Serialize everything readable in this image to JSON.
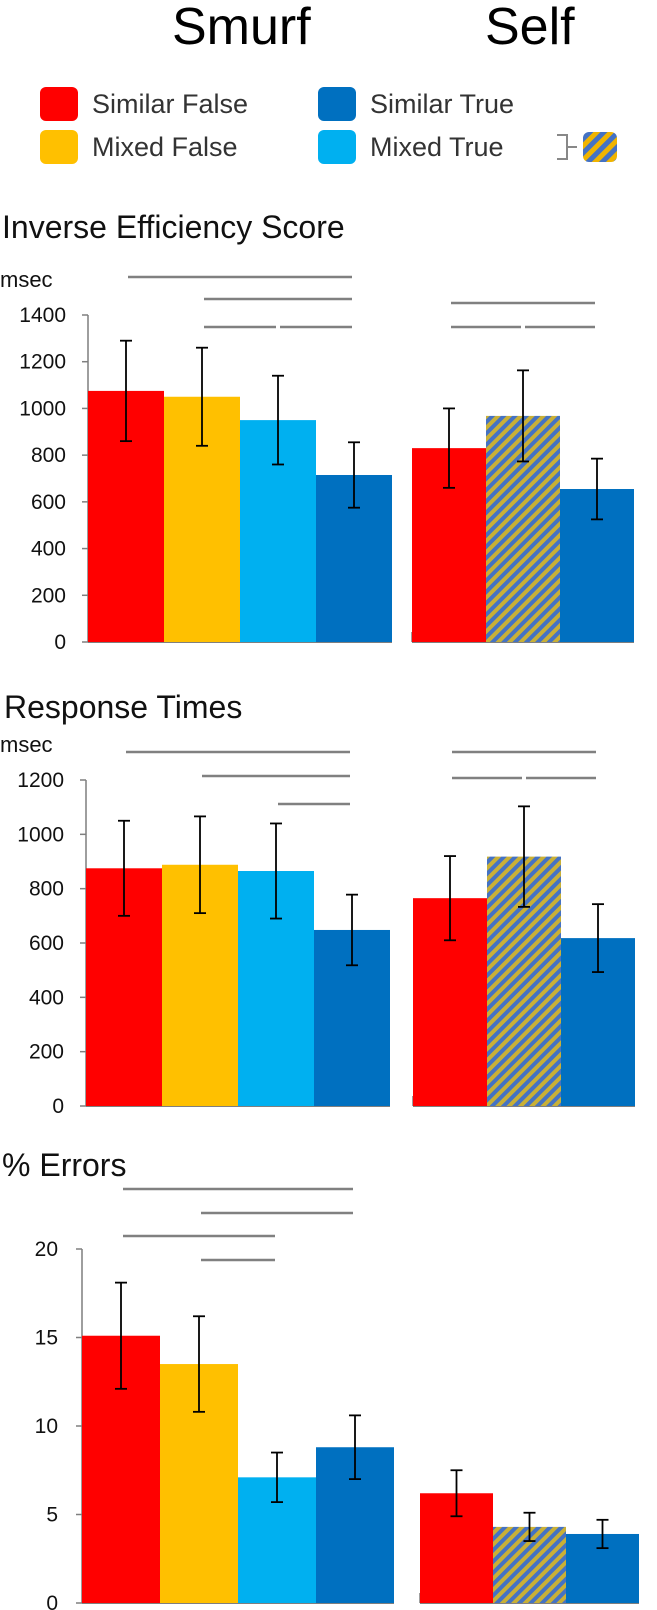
{
  "header": {
    "left_title": "Smurf",
    "right_title": "Self"
  },
  "legend": {
    "items": [
      {
        "label": "Similar False",
        "color": "#ff0000"
      },
      {
        "label": "Similar True",
        "color": "#0070c0"
      },
      {
        "label": "Mixed False",
        "color": "#ffc000"
      },
      {
        "label": "Mixed True",
        "color": "#00b0f0"
      }
    ],
    "combined_note_icon": "hatched-blue-yellow-swatch"
  },
  "colors": {
    "similar_false": "#ff0000",
    "mixed_false": "#ffc000",
    "mixed_true": "#00b0f0",
    "similar_true": "#0070c0",
    "hatch_a": "#4472c4",
    "hatch_b": "#c9b036",
    "sig_line": "#808080",
    "axis": "#7f7f7f"
  },
  "chart_data": [
    {
      "type": "bar",
      "title": "Inverse Efficiency Score",
      "ylabel": "msec",
      "ylim": [
        0,
        1400
      ],
      "yticks": [
        "0",
        "200",
        "400",
        "600",
        "800",
        "1000",
        "1200",
        "1400"
      ],
      "groups": [
        {
          "name": "Smurf",
          "categories": [
            "Similar False",
            "Mixed False",
            "Mixed True",
            "Similar True"
          ],
          "values": [
            1075,
            1050,
            950,
            715
          ],
          "errors": [
            215,
            210,
            190,
            140
          ]
        },
        {
          "name": "Self",
          "categories": [
            "Similar False",
            "Mixed True (combined)",
            "Similar True"
          ],
          "values": [
            830,
            968,
            655
          ],
          "errors": [
            170,
            195,
            130
          ]
        }
      ],
      "significance": [
        {
          "group": "Smurf",
          "from": 0,
          "to": 3
        },
        {
          "group": "Smurf",
          "from": 1,
          "to": 3
        },
        {
          "group": "Smurf",
          "from": 1,
          "to": 2
        },
        {
          "group": "Smurf",
          "from": 2,
          "to": 3
        },
        {
          "group": "Self",
          "from": 0,
          "to": 2
        },
        {
          "group": "Self",
          "from": 0,
          "to": 1
        },
        {
          "group": "Self",
          "from": 1,
          "to": 2
        }
      ]
    },
    {
      "type": "bar",
      "title": "Response Times",
      "ylabel": "msec",
      "ylim": [
        0,
        1200
      ],
      "yticks": [
        "0",
        "200",
        "400",
        "600",
        "800",
        "1000",
        "1200"
      ],
      "groups": [
        {
          "name": "Smurf",
          "categories": [
            "Similar False",
            "Mixed False",
            "Mixed True",
            "Similar True"
          ],
          "values": [
            875,
            888,
            865,
            648
          ],
          "errors": [
            175,
            178,
            175,
            130
          ]
        },
        {
          "name": "Self",
          "categories": [
            "Similar False",
            "Mixed True (combined)",
            "Similar True"
          ],
          "values": [
            765,
            918,
            618
          ],
          "errors": [
            155,
            185,
            125
          ]
        }
      ],
      "significance": [
        {
          "group": "Smurf",
          "from": 0,
          "to": 3
        },
        {
          "group": "Smurf",
          "from": 1,
          "to": 3
        },
        {
          "group": "Smurf",
          "from": 2,
          "to": 3
        },
        {
          "group": "Self",
          "from": 0,
          "to": 2
        },
        {
          "group": "Self",
          "from": 0,
          "to": 1
        },
        {
          "group": "Self",
          "from": 1,
          "to": 2
        }
      ]
    },
    {
      "type": "bar",
      "title": "% Errors",
      "ylabel": "",
      "ylim": [
        0,
        20
      ],
      "yticks": [
        "0",
        "5",
        "10",
        "15",
        "20"
      ],
      "groups": [
        {
          "name": "Smurf",
          "categories": [
            "Similar False",
            "Mixed False",
            "Mixed True",
            "Similar True"
          ],
          "values": [
            15.1,
            13.5,
            7.1,
            8.8
          ],
          "errors": [
            3.0,
            2.7,
            1.4,
            1.8
          ]
        },
        {
          "name": "Self",
          "categories": [
            "Similar False",
            "Mixed True (combined)",
            "Similar True"
          ],
          "values": [
            6.2,
            4.3,
            3.9
          ],
          "errors": [
            1.3,
            0.8,
            0.8
          ]
        }
      ],
      "significance": [
        {
          "group": "Smurf",
          "from": 0,
          "to": 3
        },
        {
          "group": "Smurf",
          "from": 1,
          "to": 3
        },
        {
          "group": "Smurf",
          "from": 0,
          "to": 2
        },
        {
          "group": "Smurf",
          "from": 1,
          "to": 2
        }
      ]
    }
  ]
}
